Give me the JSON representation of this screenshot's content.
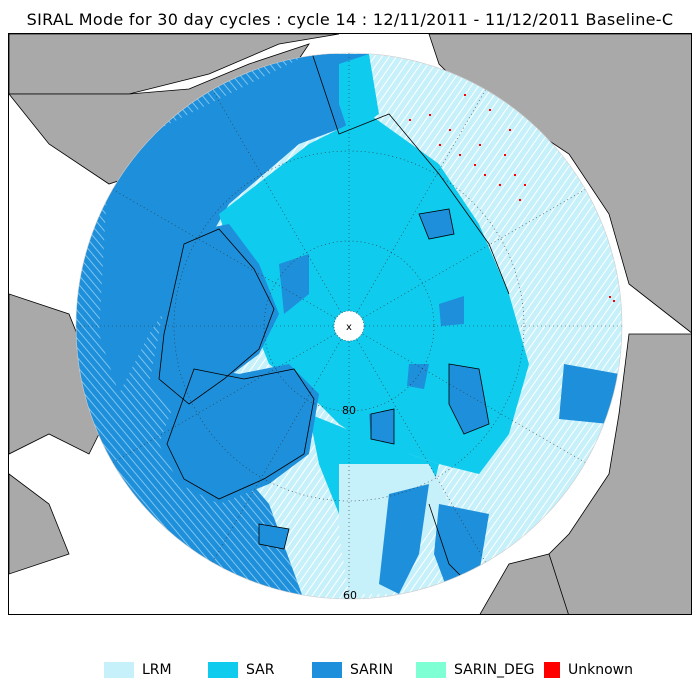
{
  "title": "SIRAL Mode for 30 day cycles : cycle 14 : 12/11/2011 - 11/12/2011 Baseline-C",
  "map": {
    "latitude_labels": [
      "80",
      "60"
    ],
    "pole_marker": "x"
  },
  "colors": {
    "land": "#a9a9a9",
    "background": "#ffffff",
    "lrm": "#c6f0fa",
    "sar": "#0fcbee",
    "sarin": "#1e8fda",
    "sarin_deg": "#7fffd4",
    "unknown": "#ff0000"
  },
  "legend": [
    {
      "label": "LRM",
      "color": "#c6f0fa"
    },
    {
      "label": "SAR",
      "color": "#0fcbee"
    },
    {
      "label": "SARIN",
      "color": "#1e8fda"
    },
    {
      "label": "SARIN_DEG",
      "color": "#7fffd4"
    },
    {
      "label": "Unknown",
      "color": "#ff0000"
    }
  ]
}
